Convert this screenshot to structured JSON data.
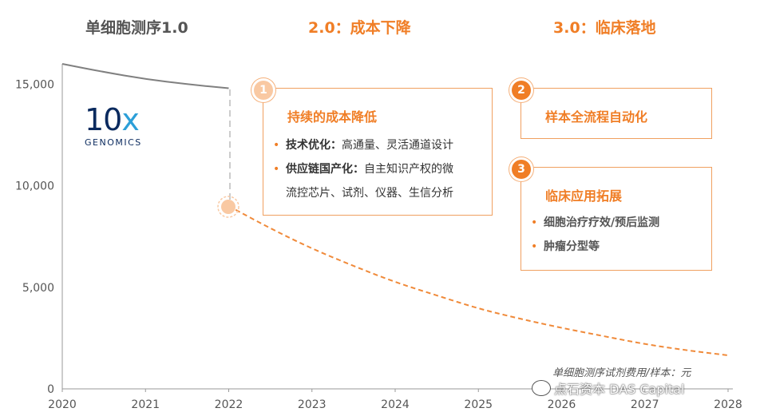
{
  "phases": [
    "单细胞测序1.0",
    "2.0：成本下降",
    "3.0：临床落地"
  ],
  "logo": {
    "num": "10",
    "x": "x",
    "sub": "GENOMICS"
  },
  "box1": {
    "num": "1",
    "title": "持续的成本降低",
    "b1_bold": "技术优化：",
    "b1": "高通量、灵活通道设计",
    "b2_bold": "供应链国产化：",
    "b2a": "自主知识产权的微",
    "b2b": "流控芯片、试剂、仪器、生信分析"
  },
  "box2": {
    "num": "2",
    "title": "样本全流程自动化"
  },
  "box3": {
    "num": "3",
    "title": "临床应用拓展",
    "b1": "细胞治疗疗效/预后监测",
    "b2": "肿瘤分型等"
  },
  "unit_note": "单细胞测序试剂费用/样本：元",
  "watermark": "点石资本 DAS Capital",
  "chart_data": {
    "type": "line",
    "x_ticks": [
      2020,
      2021,
      2022,
      2023,
      2024,
      2025,
      2026,
      2027,
      2028
    ],
    "y_ticks": [
      "0",
      "5,000",
      "10,000",
      "15,000"
    ],
    "ylim": [
      0,
      16000
    ],
    "xlim": [
      2020,
      2028
    ],
    "series": [
      {
        "style": "solid",
        "color": "#808080",
        "points": [
          [
            2020,
            16000
          ],
          [
            2020.5,
            15600
          ],
          [
            2021,
            15250
          ],
          [
            2021.5,
            15000
          ],
          [
            2022,
            14800
          ]
        ]
      },
      {
        "style": "dashed",
        "color": "#f08a3a",
        "points": [
          [
            2022,
            9000
          ],
          [
            2022.5,
            7900
          ],
          [
            2023,
            6900
          ],
          [
            2023.5,
            6050
          ],
          [
            2024,
            5250
          ],
          [
            2024.5,
            4600
          ],
          [
            2025,
            3950
          ],
          [
            2025.5,
            3450
          ],
          [
            2026,
            3000
          ],
          [
            2026.5,
            2600
          ],
          [
            2027,
            2200
          ],
          [
            2027.5,
            1900
          ],
          [
            2028,
            1650
          ]
        ]
      }
    ]
  }
}
